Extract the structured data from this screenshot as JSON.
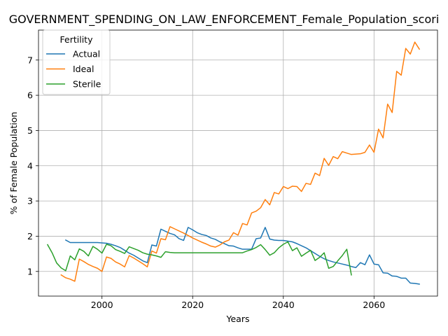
{
  "chart_data": {
    "type": "line",
    "title": "GOVERNMENT_SPENDING_ON_LAW_ENFORCEMENT_Female_Population_scori",
    "xlabel": "Years",
    "ylabel": "% of Female Population",
    "xlim": [
      1986,
      2074
    ],
    "ylim": [
      0.3,
      7.85
    ],
    "x_ticks": [
      2000,
      2020,
      2040,
      2060
    ],
    "y_ticks": [
      1,
      2,
      3,
      4,
      5,
      6,
      7
    ],
    "grid": true,
    "legend": {
      "title": "Fertility",
      "placement": "upper-left"
    },
    "series": [
      {
        "name": "Actual",
        "color": "#1f77b4",
        "points": [
          [
            1992,
            1.89
          ],
          [
            1993,
            1.82
          ],
          [
            1994,
            1.82
          ],
          [
            1995,
            1.82
          ],
          [
            1996,
            1.82
          ],
          [
            1997,
            1.82
          ],
          [
            1998,
            1.82
          ],
          [
            1999,
            1.82
          ],
          [
            2000,
            1.81
          ],
          [
            2001,
            1.8
          ],
          [
            2002,
            1.77
          ],
          [
            2003,
            1.73
          ],
          [
            2004,
            1.68
          ],
          [
            2005,
            1.6
          ],
          [
            2006,
            1.52
          ],
          [
            2007,
            1.46
          ],
          [
            2008,
            1.38
          ],
          [
            2009,
            1.3
          ],
          [
            2010,
            1.25
          ],
          [
            2011,
            1.75
          ],
          [
            2012,
            1.72
          ],
          [
            2013,
            2.2
          ],
          [
            2014,
            2.14
          ],
          [
            2015,
            2.08
          ],
          [
            2016,
            2.04
          ],
          [
            2017,
            1.93
          ],
          [
            2018,
            1.88
          ],
          [
            2019,
            2.25
          ],
          [
            2020,
            2.18
          ],
          [
            2021,
            2.1
          ],
          [
            2022,
            2.05
          ],
          [
            2023,
            2.02
          ],
          [
            2024,
            1.95
          ],
          [
            2025,
            1.91
          ],
          [
            2026,
            1.84
          ],
          [
            2027,
            1.79
          ],
          [
            2028,
            1.73
          ],
          [
            2029,
            1.72
          ],
          [
            2030,
            1.67
          ],
          [
            2031,
            1.63
          ],
          [
            2032,
            1.63
          ],
          [
            2033,
            1.63
          ],
          [
            2034,
            1.93
          ],
          [
            2035,
            1.95
          ],
          [
            2036,
            2.25
          ],
          [
            2037,
            1.92
          ],
          [
            2038,
            1.89
          ],
          [
            2039,
            1.88
          ],
          [
            2040,
            1.88
          ],
          [
            2041,
            1.86
          ],
          [
            2042,
            1.84
          ],
          [
            2043,
            1.79
          ],
          [
            2044,
            1.73
          ],
          [
            2045,
            1.67
          ],
          [
            2046,
            1.59
          ],
          [
            2047,
            1.51
          ],
          [
            2048,
            1.43
          ],
          [
            2049,
            1.36
          ],
          [
            2050,
            1.31
          ],
          [
            2051,
            1.27
          ],
          [
            2052,
            1.24
          ],
          [
            2053,
            1.21
          ],
          [
            2054,
            1.18
          ],
          [
            2055,
            1.14
          ],
          [
            2056,
            1.11
          ],
          [
            2057,
            1.25
          ],
          [
            2058,
            1.19
          ],
          [
            2059,
            1.47
          ],
          [
            2060,
            1.21
          ],
          [
            2061,
            1.19
          ],
          [
            2062,
            0.96
          ],
          [
            2063,
            0.95
          ],
          [
            2064,
            0.87
          ],
          [
            2065,
            0.86
          ],
          [
            2066,
            0.81
          ],
          [
            2067,
            0.81
          ],
          [
            2068,
            0.67
          ],
          [
            2069,
            0.66
          ],
          [
            2070,
            0.64
          ]
        ]
      },
      {
        "name": "Ideal",
        "color": "#ff7f0e",
        "points": [
          [
            1991,
            0.9
          ],
          [
            1992,
            0.82
          ],
          [
            1993,
            0.78
          ],
          [
            1994,
            0.72
          ],
          [
            1995,
            1.35
          ],
          [
            1996,
            1.28
          ],
          [
            1997,
            1.2
          ],
          [
            1998,
            1.14
          ],
          [
            1999,
            1.09
          ],
          [
            2000,
            1.0
          ],
          [
            2001,
            1.41
          ],
          [
            2002,
            1.37
          ],
          [
            2003,
            1.27
          ],
          [
            2004,
            1.21
          ],
          [
            2005,
            1.13
          ],
          [
            2006,
            1.45
          ],
          [
            2007,
            1.38
          ],
          [
            2008,
            1.3
          ],
          [
            2009,
            1.22
          ],
          [
            2010,
            1.13
          ],
          [
            2011,
            1.58
          ],
          [
            2012,
            1.52
          ],
          [
            2013,
            1.93
          ],
          [
            2014,
            1.9
          ],
          [
            2015,
            2.27
          ],
          [
            2016,
            2.21
          ],
          [
            2017,
            2.15
          ],
          [
            2018,
            2.09
          ],
          [
            2019,
            2.02
          ],
          [
            2020,
            1.95
          ],
          [
            2021,
            1.89
          ],
          [
            2022,
            1.83
          ],
          [
            2023,
            1.78
          ],
          [
            2024,
            1.72
          ],
          [
            2025,
            1.69
          ],
          [
            2026,
            1.75
          ],
          [
            2027,
            1.84
          ],
          [
            2028,
            1.89
          ],
          [
            2029,
            2.1
          ],
          [
            2030,
            2.03
          ],
          [
            2031,
            2.36
          ],
          [
            2032,
            2.32
          ],
          [
            2033,
            2.66
          ],
          [
            2034,
            2.71
          ],
          [
            2035,
            2.81
          ],
          [
            2036,
            3.04
          ],
          [
            2037,
            2.89
          ],
          [
            2038,
            3.24
          ],
          [
            2039,
            3.2
          ],
          [
            2040,
            3.41
          ],
          [
            2041,
            3.35
          ],
          [
            2042,
            3.42
          ],
          [
            2043,
            3.41
          ],
          [
            2044,
            3.27
          ],
          [
            2045,
            3.5
          ],
          [
            2046,
            3.47
          ],
          [
            2047,
            3.79
          ],
          [
            2048,
            3.72
          ],
          [
            2049,
            4.21
          ],
          [
            2050,
            4.01
          ],
          [
            2051,
            4.26
          ],
          [
            2052,
            4.2
          ],
          [
            2053,
            4.4
          ],
          [
            2054,
            4.36
          ],
          [
            2055,
            4.32
          ],
          [
            2056,
            4.33
          ],
          [
            2057,
            4.34
          ],
          [
            2058,
            4.38
          ],
          [
            2059,
            4.59
          ],
          [
            2060,
            4.38
          ],
          [
            2061,
            5.04
          ],
          [
            2062,
            4.79
          ],
          [
            2063,
            5.75
          ],
          [
            2064,
            5.51
          ],
          [
            2065,
            6.68
          ],
          [
            2066,
            6.57
          ],
          [
            2067,
            7.33
          ],
          [
            2068,
            7.17
          ],
          [
            2069,
            7.51
          ],
          [
            2070,
            7.31
          ]
        ]
      },
      {
        "name": "Sterile",
        "color": "#2ca02c",
        "points": [
          [
            1988,
            1.76
          ],
          [
            1989,
            1.53
          ],
          [
            1990,
            1.24
          ],
          [
            1991,
            1.1
          ],
          [
            1992,
            1.02
          ],
          [
            1993,
            1.44
          ],
          [
            1994,
            1.33
          ],
          [
            1995,
            1.64
          ],
          [
            1996,
            1.57
          ],
          [
            1997,
            1.44
          ],
          [
            1998,
            1.71
          ],
          [
            1999,
            1.63
          ],
          [
            2000,
            1.52
          ],
          [
            2001,
            1.77
          ],
          [
            2002,
            1.73
          ],
          [
            2003,
            1.62
          ],
          [
            2004,
            1.57
          ],
          [
            2005,
            1.51
          ],
          [
            2006,
            1.7
          ],
          [
            2007,
            1.65
          ],
          [
            2008,
            1.6
          ],
          [
            2009,
            1.53
          ],
          [
            2010,
            1.49
          ],
          [
            2011,
            1.47
          ],
          [
            2012,
            1.44
          ],
          [
            2013,
            1.4
          ],
          [
            2014,
            1.56
          ],
          [
            2015,
            1.54
          ],
          [
            2016,
            1.53
          ],
          [
            2017,
            1.53
          ],
          [
            2018,
            1.53
          ],
          [
            2019,
            1.53
          ],
          [
            2020,
            1.53
          ],
          [
            2021,
            1.53
          ],
          [
            2022,
            1.53
          ],
          [
            2023,
            1.53
          ],
          [
            2024,
            1.53
          ],
          [
            2025,
            1.53
          ],
          [
            2026,
            1.53
          ],
          [
            2027,
            1.53
          ],
          [
            2028,
            1.53
          ],
          [
            2029,
            1.53
          ],
          [
            2030,
            1.53
          ],
          [
            2031,
            1.53
          ],
          [
            2032,
            1.58
          ],
          [
            2033,
            1.62
          ],
          [
            2034,
            1.68
          ],
          [
            2035,
            1.76
          ],
          [
            2036,
            1.62
          ],
          [
            2037,
            1.46
          ],
          [
            2038,
            1.53
          ],
          [
            2039,
            1.67
          ],
          [
            2040,
            1.77
          ],
          [
            2041,
            1.84
          ],
          [
            2042,
            1.59
          ],
          [
            2043,
            1.67
          ],
          [
            2044,
            1.43
          ],
          [
            2045,
            1.52
          ],
          [
            2046,
            1.6
          ],
          [
            2047,
            1.31
          ],
          [
            2048,
            1.4
          ],
          [
            2049,
            1.53
          ],
          [
            2050,
            1.09
          ],
          [
            2051,
            1.14
          ],
          [
            2052,
            1.3
          ],
          [
            2053,
            1.45
          ],
          [
            2054,
            1.63
          ],
          [
            2055,
            0.9
          ]
        ]
      }
    ]
  }
}
